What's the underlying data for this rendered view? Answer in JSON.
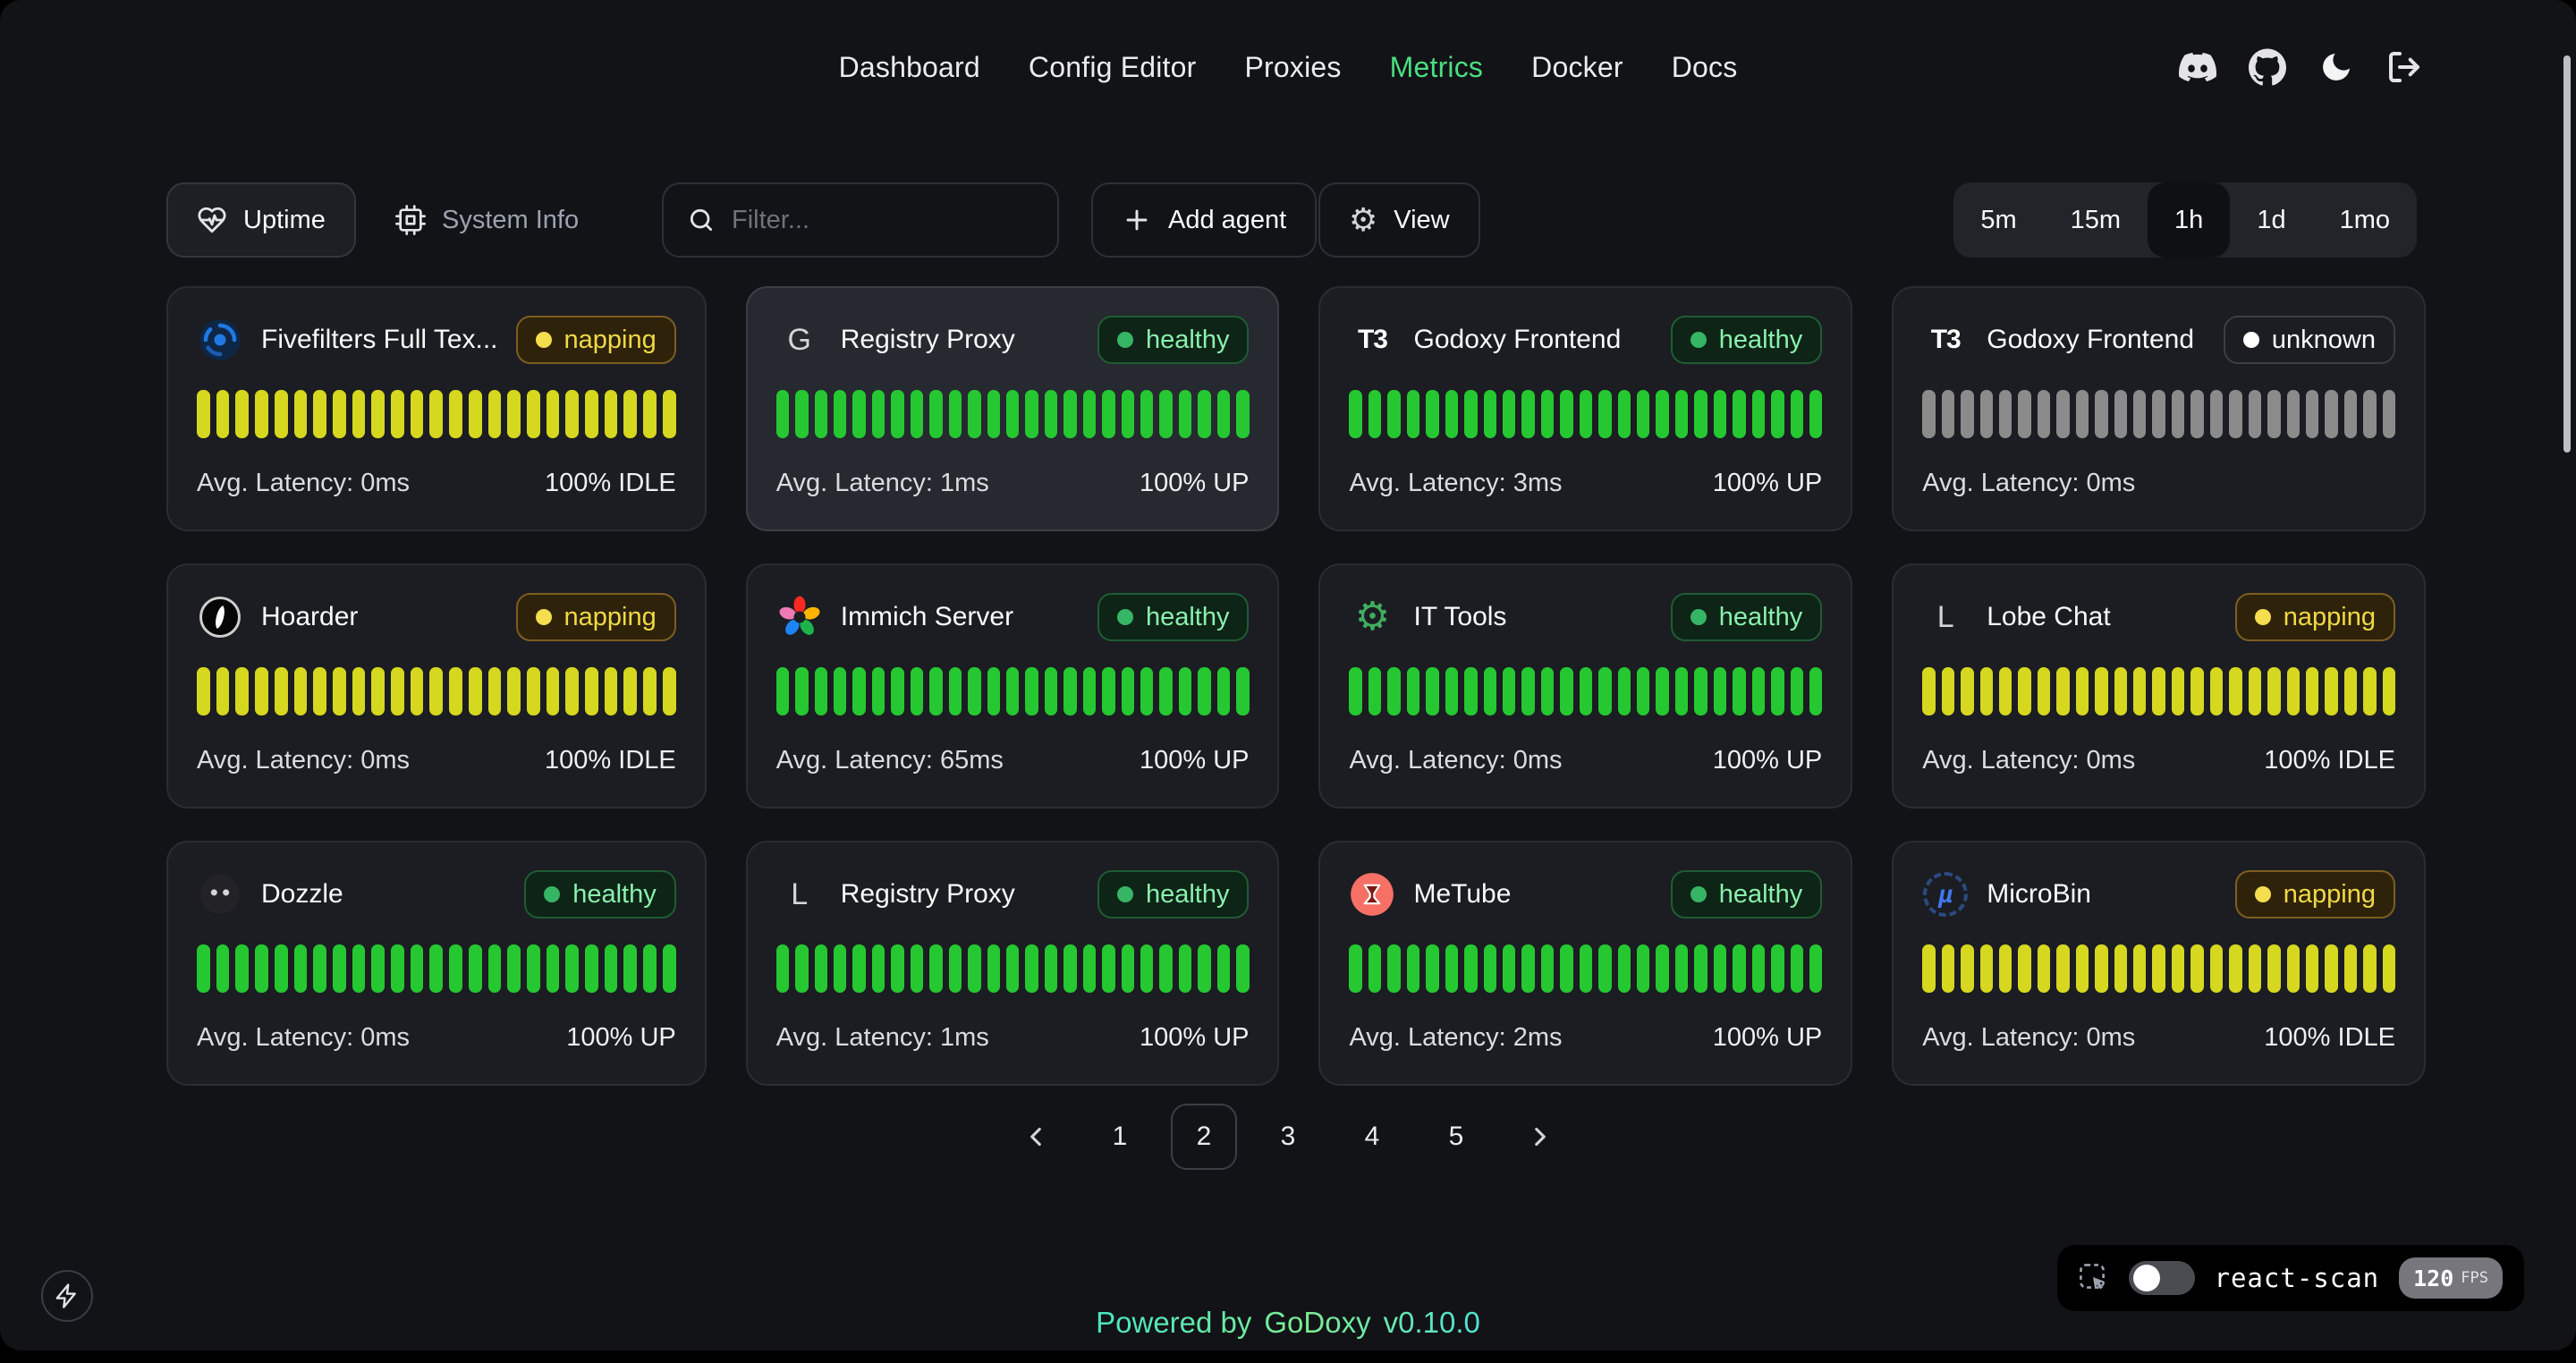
{
  "nav": {
    "items": [
      {
        "label": "Dashboard",
        "active": false
      },
      {
        "label": "Config Editor",
        "active": false
      },
      {
        "label": "Proxies",
        "active": false
      },
      {
        "label": "Metrics",
        "active": true
      },
      {
        "label": "Docker",
        "active": false
      },
      {
        "label": "Docs",
        "active": false
      }
    ]
  },
  "header": {
    "icons": [
      "discord",
      "github",
      "moon",
      "logout"
    ]
  },
  "toolbar": {
    "uptime_label": "Uptime",
    "system_info_label": "System Info",
    "filter_placeholder": "Filter...",
    "add_agent_label": "Add agent",
    "view_label": "View"
  },
  "time_ranges": {
    "options": [
      "5m",
      "15m",
      "1h",
      "1d",
      "1mo"
    ],
    "active": "1h"
  },
  "cards": [
    {
      "name": "Fivefilters Full Tex...",
      "status": "napping",
      "status_label": "napping",
      "icon": {
        "kind": "svg",
        "name": "fivefilters-logo"
      },
      "bars": 25,
      "latency": "Avg. Latency: 0ms",
      "uptime": "100% IDLE",
      "highlighted": false
    },
    {
      "name": "Registry Proxy",
      "status": "healthy",
      "status_label": "healthy",
      "icon": {
        "kind": "text",
        "name": "letter-g-logo",
        "text": "G"
      },
      "bars": 25,
      "latency": "Avg. Latency: 1ms",
      "uptime": "100% UP",
      "highlighted": true
    },
    {
      "name": "Godoxy Frontend",
      "status": "healthy",
      "status_label": "healthy",
      "icon": {
        "kind": "text",
        "name": "t3-logo",
        "text": "T3"
      },
      "bars": 25,
      "latency": "Avg. Latency: 3ms",
      "uptime": "100% UP",
      "highlighted": false
    },
    {
      "name": "Godoxy Frontend",
      "status": "unknown",
      "status_label": "unknown",
      "icon": {
        "kind": "text",
        "name": "t3-logo",
        "text": "T3"
      },
      "bars": 25,
      "latency": "Avg. Latency: 0ms",
      "uptime": "",
      "highlighted": false
    },
    {
      "name": "Hoarder",
      "status": "napping",
      "status_label": "napping",
      "icon": {
        "kind": "svg",
        "name": "hoarder-logo"
      },
      "bars": 25,
      "latency": "Avg. Latency: 0ms",
      "uptime": "100% IDLE",
      "highlighted": false
    },
    {
      "name": "Immich Server",
      "status": "healthy",
      "status_label": "healthy",
      "icon": {
        "kind": "svg",
        "name": "immich-logo"
      },
      "bars": 25,
      "latency": "Avg. Latency: 65ms",
      "uptime": "100% UP",
      "highlighted": false
    },
    {
      "name": "IT Tools",
      "status": "healthy",
      "status_label": "healthy",
      "icon": {
        "kind": "gear",
        "name": "it-tools-logo"
      },
      "bars": 25,
      "latency": "Avg. Latency: 0ms",
      "uptime": "100% UP",
      "highlighted": false
    },
    {
      "name": "Lobe Chat",
      "status": "napping",
      "status_label": "napping",
      "icon": {
        "kind": "text",
        "name": "letter-l-logo",
        "text": "L"
      },
      "bars": 25,
      "latency": "Avg. Latency: 0ms",
      "uptime": "100% IDLE",
      "highlighted": false
    },
    {
      "name": "Dozzle",
      "status": "healthy",
      "status_label": "healthy",
      "icon": {
        "kind": "svg",
        "name": "dozzle-logo"
      },
      "bars": 25,
      "latency": "Avg. Latency: 0ms",
      "uptime": "100% UP",
      "highlighted": false
    },
    {
      "name": "Registry Proxy",
      "status": "healthy",
      "status_label": "healthy",
      "icon": {
        "kind": "text",
        "name": "letter-l-logo",
        "text": "L"
      },
      "bars": 25,
      "latency": "Avg. Latency: 1ms",
      "uptime": "100% UP",
      "highlighted": false
    },
    {
      "name": "MeTube",
      "status": "healthy",
      "status_label": "healthy",
      "icon": {
        "kind": "svg",
        "name": "metube-logo"
      },
      "bars": 25,
      "latency": "Avg. Latency: 2ms",
      "uptime": "100% UP",
      "highlighted": false
    },
    {
      "name": "MicroBin",
      "status": "napping",
      "status_label": "napping",
      "icon": {
        "kind": "microbin",
        "name": "microbin-logo",
        "text": "µ"
      },
      "bars": 25,
      "latency": "Avg. Latency: 0ms",
      "uptime": "100% IDLE",
      "highlighted": false
    }
  ],
  "pagination": {
    "pages": [
      "1",
      "2",
      "3",
      "4",
      "5"
    ],
    "active": "2"
  },
  "footer": {
    "powered_by": "Powered by",
    "brand": "GoDoxy",
    "version": "v0.10.0"
  },
  "react_scan": {
    "label": "react-scan",
    "fps": "120",
    "fps_unit": "FPS",
    "toggle_on": false
  },
  "colors": {
    "accent_green": "#4ade80",
    "page_bg": "#121317",
    "card_bg": "#1b1d22",
    "bars": {
      "healthy": "#25c831",
      "napping": "#d6d71f",
      "unknown": "#8b8b8b"
    },
    "badge_healthy_text": "#8af0ad",
    "badge_napping_text": "#f2d945",
    "badge_unknown_text": "#fafafa",
    "footer_gradient": [
      "#49e6c3",
      "#7cec92",
      "#4fe3d2"
    ]
  }
}
